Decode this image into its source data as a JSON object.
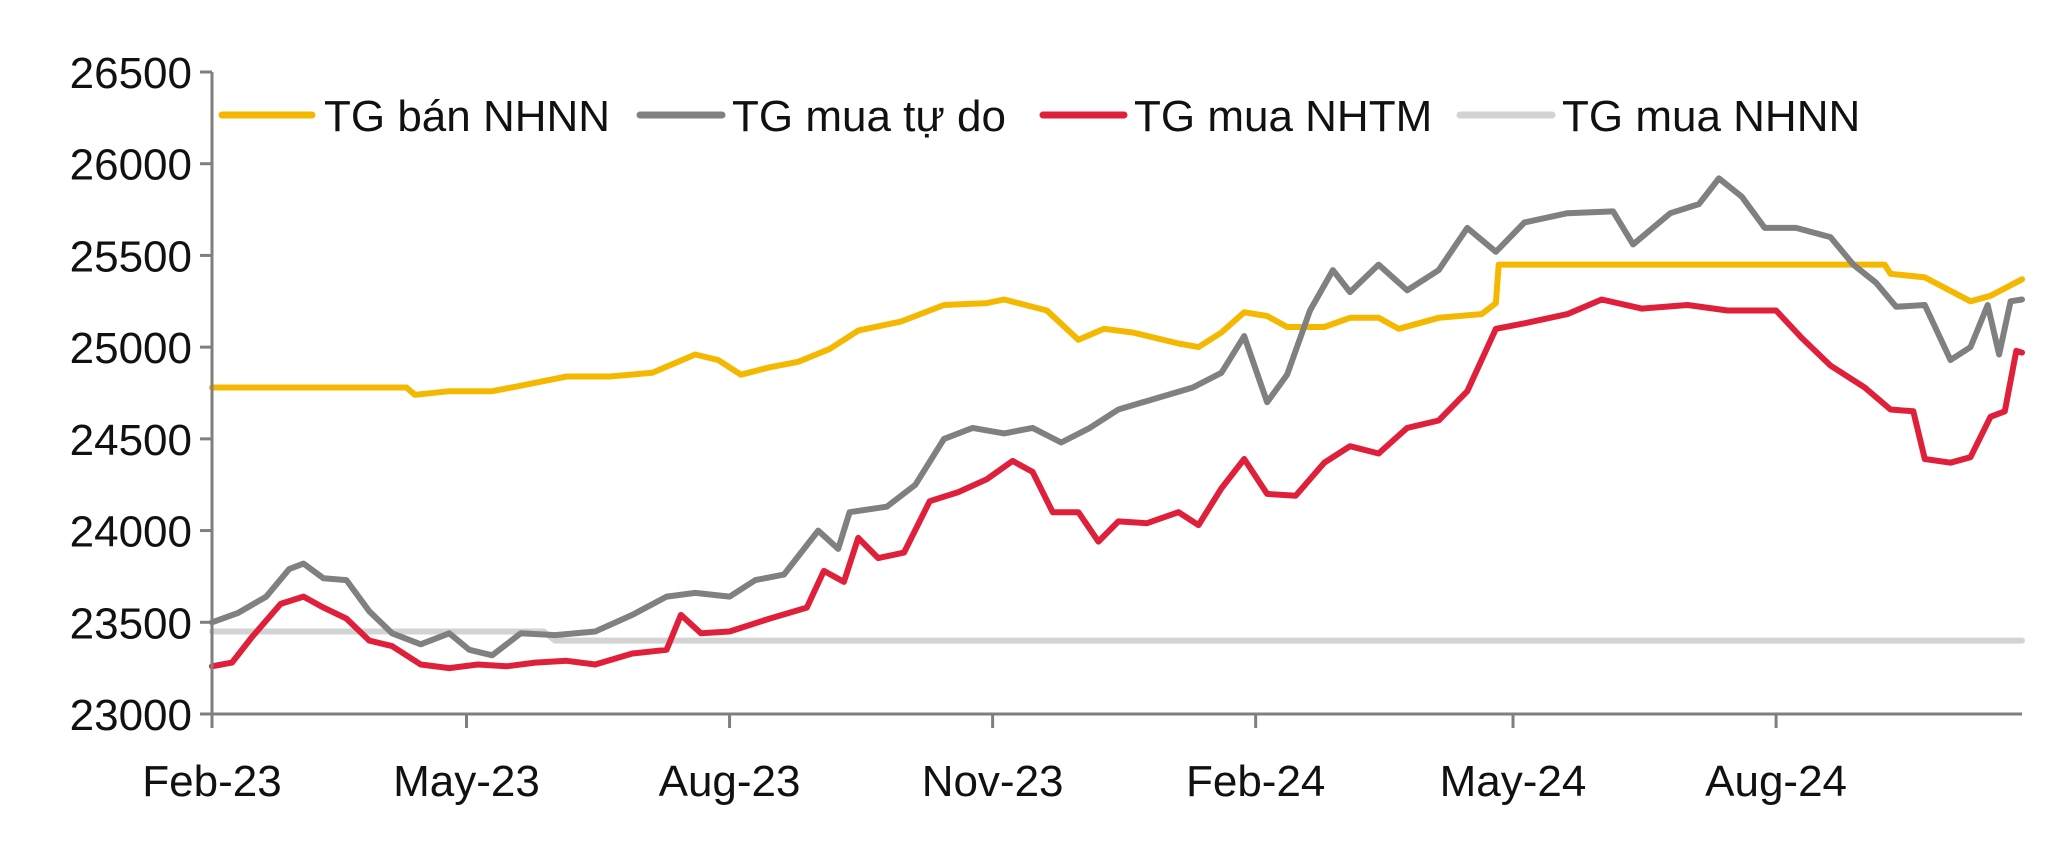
{
  "chart_data": {
    "type": "line",
    "title": "",
    "xlabel": "",
    "ylabel": "",
    "ylim": [
      23000,
      26500
    ],
    "yticks": [
      23000,
      23500,
      24000,
      24500,
      25000,
      25500,
      26000,
      26500
    ],
    "ytick_labels": [
      "23000",
      "23500",
      "24000",
      "24500",
      "25000",
      "25500",
      "26000",
      "26500"
    ],
    "xlim": [
      "2023-02-01",
      "2024-10-26"
    ],
    "xticks": [
      "2023-02-01",
      "2023-05-01",
      "2023-08-01",
      "2023-11-01",
      "2024-02-01",
      "2024-05-01",
      "2024-08-01"
    ],
    "xtick_labels": [
      "Feb-23",
      "May-23",
      "Aug-23",
      "Nov-23",
      "Feb-24",
      "May-24",
      "Aug-24"
    ],
    "grid": false,
    "legend": "top",
    "series": [
      {
        "name": "TG bán NHNN",
        "color": "#F5B800",
        "points": [
          [
            "2023-02-01",
            24780
          ],
          [
            "2023-03-20",
            24780
          ],
          [
            "2023-04-10",
            24780
          ],
          [
            "2023-04-13",
            24740
          ],
          [
            "2023-04-25",
            24760
          ],
          [
            "2023-05-10",
            24760
          ],
          [
            "2023-05-20",
            24790
          ],
          [
            "2023-06-05",
            24840
          ],
          [
            "2023-06-20",
            24840
          ],
          [
            "2023-07-05",
            24860
          ],
          [
            "2023-07-20",
            24960
          ],
          [
            "2023-07-28",
            24930
          ],
          [
            "2023-08-05",
            24850
          ],
          [
            "2023-08-15",
            24890
          ],
          [
            "2023-08-25",
            24920
          ],
          [
            "2023-09-05",
            24990
          ],
          [
            "2023-09-15",
            25090
          ],
          [
            "2023-09-30",
            25140
          ],
          [
            "2023-10-15",
            25230
          ],
          [
            "2023-10-30",
            25240
          ],
          [
            "2023-11-05",
            25260
          ],
          [
            "2023-11-20",
            25200
          ],
          [
            "2023-12-01",
            25040
          ],
          [
            "2023-12-10",
            25100
          ],
          [
            "2023-12-20",
            25080
          ],
          [
            "2024-01-05",
            25020
          ],
          [
            "2024-01-12",
            25000
          ],
          [
            "2024-01-20",
            25080
          ],
          [
            "2024-01-28",
            25190
          ],
          [
            "2024-02-05",
            25170
          ],
          [
            "2024-02-12",
            25110
          ],
          [
            "2024-02-25",
            25110
          ],
          [
            "2024-03-05",
            25160
          ],
          [
            "2024-03-15",
            25160
          ],
          [
            "2024-03-22",
            25100
          ],
          [
            "2024-04-05",
            25160
          ],
          [
            "2024-04-20",
            25180
          ],
          [
            "2024-04-25",
            25240
          ],
          [
            "2024-04-26",
            25450
          ],
          [
            "2024-05-15",
            25450
          ],
          [
            "2024-06-15",
            25450
          ],
          [
            "2024-07-15",
            25450
          ],
          [
            "2024-08-15",
            25450
          ],
          [
            "2024-09-08",
            25450
          ],
          [
            "2024-09-10",
            25400
          ],
          [
            "2024-09-22",
            25380
          ],
          [
            "2024-10-08",
            25250
          ],
          [
            "2024-10-15",
            25280
          ],
          [
            "2024-10-26",
            25370
          ]
        ]
      },
      {
        "name": "TG mua tự do",
        "color": "#808080",
        "points": [
          [
            "2023-02-01",
            23500
          ],
          [
            "2023-02-10",
            23550
          ],
          [
            "2023-02-20",
            23640
          ],
          [
            "2023-02-28",
            23790
          ],
          [
            "2023-03-05",
            23820
          ],
          [
            "2023-03-12",
            23740
          ],
          [
            "2023-03-20",
            23730
          ],
          [
            "2023-03-28",
            23560
          ],
          [
            "2023-04-05",
            23440
          ],
          [
            "2023-04-15",
            23380
          ],
          [
            "2023-04-25",
            23440
          ],
          [
            "2023-05-02",
            23350
          ],
          [
            "2023-05-10",
            23320
          ],
          [
            "2023-05-20",
            23440
          ],
          [
            "2023-06-01",
            23430
          ],
          [
            "2023-06-15",
            23450
          ],
          [
            "2023-06-28",
            23540
          ],
          [
            "2023-07-10",
            23640
          ],
          [
            "2023-07-20",
            23660
          ],
          [
            "2023-08-01",
            23640
          ],
          [
            "2023-08-10",
            23730
          ],
          [
            "2023-08-20",
            23760
          ],
          [
            "2023-09-01",
            24000
          ],
          [
            "2023-09-08",
            23900
          ],
          [
            "2023-09-12",
            24100
          ],
          [
            "2023-09-25",
            24130
          ],
          [
            "2023-10-05",
            24250
          ],
          [
            "2023-10-15",
            24500
          ],
          [
            "2023-10-25",
            24560
          ],
          [
            "2023-11-05",
            24530
          ],
          [
            "2023-11-15",
            24560
          ],
          [
            "2023-11-25",
            24480
          ],
          [
            "2023-12-05",
            24560
          ],
          [
            "2023-12-15",
            24660
          ],
          [
            "2023-12-28",
            24720
          ],
          [
            "2024-01-10",
            24780
          ],
          [
            "2024-01-20",
            24860
          ],
          [
            "2024-01-28",
            25060
          ],
          [
            "2024-02-05",
            24700
          ],
          [
            "2024-02-12",
            24850
          ],
          [
            "2024-02-20",
            25200
          ],
          [
            "2024-02-28",
            25420
          ],
          [
            "2024-03-05",
            25300
          ],
          [
            "2024-03-15",
            25450
          ],
          [
            "2024-03-25",
            25310
          ],
          [
            "2024-04-05",
            25420
          ],
          [
            "2024-04-15",
            25650
          ],
          [
            "2024-04-25",
            25520
          ],
          [
            "2024-05-05",
            25680
          ],
          [
            "2024-05-20",
            25730
          ],
          [
            "2024-06-05",
            25740
          ],
          [
            "2024-06-12",
            25560
          ],
          [
            "2024-06-25",
            25730
          ],
          [
            "2024-07-05",
            25780
          ],
          [
            "2024-07-12",
            25920
          ],
          [
            "2024-07-20",
            25820
          ],
          [
            "2024-07-28",
            25650
          ],
          [
            "2024-08-08",
            25650
          ],
          [
            "2024-08-20",
            25600
          ],
          [
            "2024-08-28",
            25450
          ],
          [
            "2024-09-05",
            25350
          ],
          [
            "2024-09-12",
            25220
          ],
          [
            "2024-09-22",
            25230
          ],
          [
            "2024-10-01",
            24930
          ],
          [
            "2024-10-08",
            25000
          ],
          [
            "2024-10-14",
            25230
          ],
          [
            "2024-10-18",
            24960
          ],
          [
            "2024-10-22",
            25250
          ],
          [
            "2024-10-26",
            25260
          ]
        ]
      },
      {
        "name": "TG mua NHTM",
        "color": "#E0203A",
        "points": [
          [
            "2023-02-01",
            23260
          ],
          [
            "2023-02-08",
            23280
          ],
          [
            "2023-02-15",
            23420
          ],
          [
            "2023-02-25",
            23600
          ],
          [
            "2023-03-05",
            23640
          ],
          [
            "2023-03-12",
            23580
          ],
          [
            "2023-03-20",
            23520
          ],
          [
            "2023-03-28",
            23400
          ],
          [
            "2023-04-05",
            23370
          ],
          [
            "2023-04-15",
            23270
          ],
          [
            "2023-04-25",
            23250
          ],
          [
            "2023-05-05",
            23270
          ],
          [
            "2023-05-15",
            23260
          ],
          [
            "2023-05-25",
            23280
          ],
          [
            "2023-06-05",
            23290
          ],
          [
            "2023-06-15",
            23270
          ],
          [
            "2023-06-28",
            23330
          ],
          [
            "2023-07-10",
            23350
          ],
          [
            "2023-07-15",
            23540
          ],
          [
            "2023-07-22",
            23440
          ],
          [
            "2023-08-01",
            23450
          ],
          [
            "2023-08-15",
            23520
          ],
          [
            "2023-08-28",
            23580
          ],
          [
            "2023-09-03",
            23780
          ],
          [
            "2023-09-10",
            23720
          ],
          [
            "2023-09-15",
            23960
          ],
          [
            "2023-09-22",
            23850
          ],
          [
            "2023-10-01",
            23880
          ],
          [
            "2023-10-10",
            24160
          ],
          [
            "2023-10-20",
            24210
          ],
          [
            "2023-10-30",
            24280
          ],
          [
            "2023-11-08",
            24380
          ],
          [
            "2023-11-15",
            24320
          ],
          [
            "2023-11-22",
            24100
          ],
          [
            "2023-12-01",
            24100
          ],
          [
            "2023-12-08",
            23940
          ],
          [
            "2023-12-15",
            24050
          ],
          [
            "2023-12-25",
            24040
          ],
          [
            "2024-01-05",
            24100
          ],
          [
            "2024-01-12",
            24030
          ],
          [
            "2024-01-20",
            24230
          ],
          [
            "2024-01-28",
            24390
          ],
          [
            "2024-02-05",
            24200
          ],
          [
            "2024-02-15",
            24190
          ],
          [
            "2024-02-25",
            24370
          ],
          [
            "2024-03-05",
            24460
          ],
          [
            "2024-03-15",
            24420
          ],
          [
            "2024-03-25",
            24560
          ],
          [
            "2024-04-05",
            24600
          ],
          [
            "2024-04-15",
            24760
          ],
          [
            "2024-04-25",
            25100
          ],
          [
            "2024-05-05",
            25130
          ],
          [
            "2024-05-20",
            25180
          ],
          [
            "2024-06-01",
            25260
          ],
          [
            "2024-06-15",
            25210
          ],
          [
            "2024-07-01",
            25230
          ],
          [
            "2024-07-15",
            25200
          ],
          [
            "2024-08-01",
            25200
          ],
          [
            "2024-08-10",
            25050
          ],
          [
            "2024-08-20",
            24900
          ],
          [
            "2024-09-01",
            24780
          ],
          [
            "2024-09-10",
            24660
          ],
          [
            "2024-09-18",
            24650
          ],
          [
            "2024-09-22",
            24390
          ],
          [
            "2024-10-01",
            24370
          ],
          [
            "2024-10-08",
            24400
          ],
          [
            "2024-10-15",
            24620
          ],
          [
            "2024-10-20",
            24650
          ],
          [
            "2024-10-24",
            24980
          ],
          [
            "2024-10-26",
            24970
          ]
        ]
      },
      {
        "name": "TG mua NHNN",
        "color": "#D3D3D3",
        "points": [
          [
            "2023-02-01",
            23450
          ],
          [
            "2023-05-28",
            23450
          ],
          [
            "2023-06-01",
            23400
          ],
          [
            "2024-10-26",
            23400
          ]
        ]
      }
    ]
  }
}
